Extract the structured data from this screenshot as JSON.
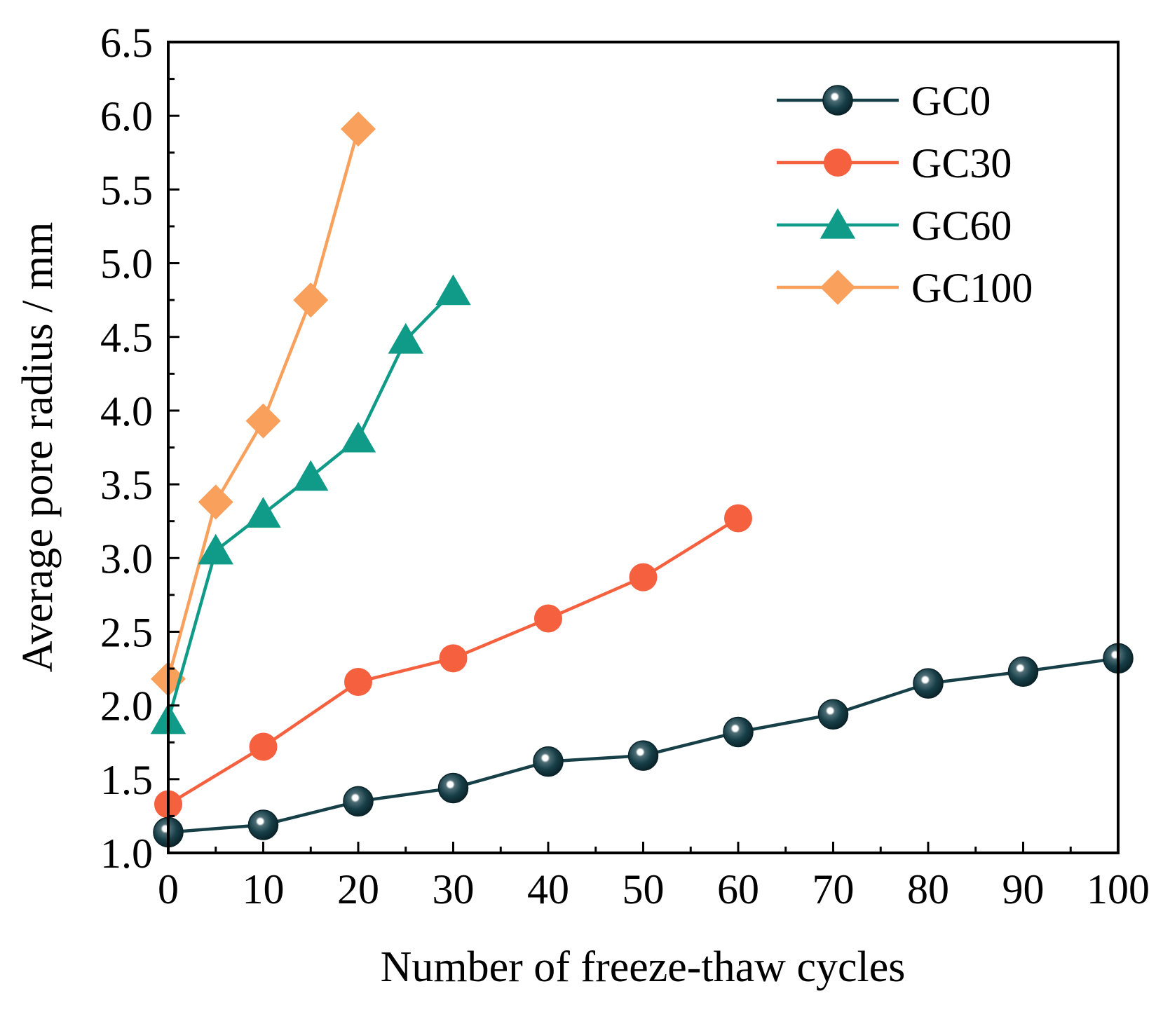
{
  "chart_data": {
    "type": "line",
    "xlabel": "Number of freeze-thaw cycles",
    "ylabel": "Average pore radius / mm",
    "xlim": [
      0,
      100
    ],
    "ylim": [
      1.0,
      6.5
    ],
    "x_ticks": [
      "0",
      "10",
      "20",
      "30",
      "40",
      "50",
      "60",
      "70",
      "80",
      "90",
      "100"
    ],
    "y_ticks": [
      "1.0",
      "1.5",
      "2.0",
      "2.5",
      "3.0",
      "3.5",
      "4.0",
      "4.5",
      "5.0",
      "5.5",
      "6.0",
      "6.5"
    ],
    "legend_position": "top-right",
    "series": [
      {
        "name": "GC0",
        "color": "#173f48",
        "marker": "sphere",
        "x": [
          0,
          10,
          20,
          30,
          40,
          50,
          60,
          70,
          80,
          90,
          100
        ],
        "y": [
          1.14,
          1.19,
          1.35,
          1.44,
          1.62,
          1.66,
          1.82,
          1.94,
          2.15,
          2.23,
          2.32
        ]
      },
      {
        "name": "GC30",
        "color": "#f5603f",
        "marker": "circle",
        "x": [
          0,
          10,
          20,
          30,
          40,
          50,
          60
        ],
        "y": [
          1.33,
          1.72,
          2.16,
          2.32,
          2.59,
          2.87,
          3.27
        ]
      },
      {
        "name": "GC60",
        "color": "#0f9b87",
        "marker": "triangle",
        "x": [
          0,
          5,
          10,
          15,
          20,
          25,
          30
        ],
        "y": [
          1.9,
          3.05,
          3.3,
          3.55,
          3.81,
          4.48,
          4.81
        ]
      },
      {
        "name": "GC100",
        "color": "#f8a05c",
        "marker": "diamond",
        "x": [
          0,
          5,
          10,
          15,
          20
        ],
        "y": [
          2.18,
          3.38,
          3.93,
          4.75,
          5.91
        ]
      }
    ]
  }
}
